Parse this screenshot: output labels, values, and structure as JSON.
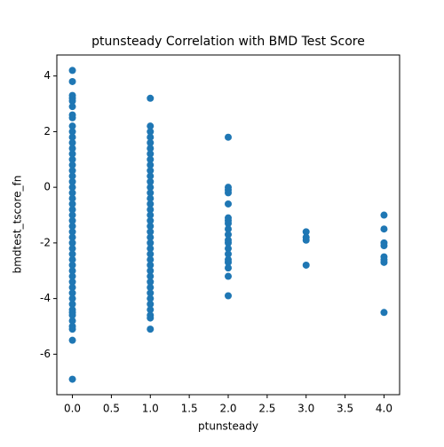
{
  "chart_data": {
    "type": "scatter",
    "title": "ptunsteady Correlation with BMD Test Score",
    "x_label": "ptunsteady",
    "y_label": "bmdtest_tscore_fn",
    "series": [
      {
        "color": "#1f77b4",
        "x": [
          0,
          0,
          0,
          0,
          0,
          0,
          0,
          0,
          0,
          0,
          0,
          0,
          0,
          0,
          0,
          0,
          0,
          0,
          0,
          0,
          0,
          0,
          0,
          0,
          0,
          0,
          0,
          0,
          0,
          0,
          0,
          0,
          0,
          0,
          0,
          0,
          0,
          0,
          0,
          0,
          0,
          0,
          0,
          0,
          0,
          0,
          0,
          0,
          0,
          1,
          1,
          1,
          1,
          1,
          1,
          1,
          1,
          1,
          1,
          1,
          1,
          1,
          1,
          1,
          1,
          1,
          1,
          1,
          1,
          1,
          1,
          1,
          1,
          1,
          1,
          1,
          1,
          1,
          1,
          1,
          1,
          1,
          1,
          1,
          1,
          1,
          1,
          2,
          2,
          2,
          2,
          2,
          2,
          2,
          2,
          2,
          2,
          2,
          2,
          2,
          2,
          2,
          2,
          2,
          2,
          2,
          3,
          3,
          3,
          3,
          4,
          4,
          4,
          4,
          4,
          4,
          4,
          4
        ],
        "values": [
          4.2,
          3.8,
          3.3,
          3.2,
          3.1,
          2.9,
          2.6,
          2.5,
          2.2,
          2.0,
          1.8,
          1.6,
          1.4,
          1.2,
          1.0,
          0.8,
          0.6,
          0.4,
          0.2,
          0,
          -0.2,
          -0.4,
          -0.6,
          -0.8,
          -1.0,
          -1.2,
          -1.4,
          -1.6,
          -1.8,
          -2.0,
          -2.2,
          -2.4,
          -2.6,
          -2.8,
          -3.0,
          -3.2,
          -3.4,
          -3.6,
          -3.8,
          -4.0,
          -4.2,
          -4.4,
          -4.5,
          -4.6,
          -4.8,
          -5.0,
          -5.1,
          -5.5,
          -6.9,
          3.2,
          2.2,
          2.0,
          1.8,
          1.6,
          1.4,
          1.2,
          1.0,
          0.8,
          0.6,
          0.4,
          0.2,
          0,
          -0.2,
          -0.4,
          -0.6,
          -0.8,
          -1.0,
          -1.2,
          -1.4,
          -1.6,
          -1.8,
          -2.0,
          -2.2,
          -2.4,
          -2.6,
          -2.8,
          -3.0,
          -3.2,
          -3.4,
          -3.6,
          -3.8,
          -4.0,
          -4.2,
          -4.4,
          -4.6,
          -4.7,
          -5.1,
          1.8,
          0,
          -0.1,
          -0.2,
          -0.6,
          -1.1,
          -1.2,
          -1.3,
          -1.5,
          -1.7,
          -1.9,
          -2.0,
          -2.2,
          -2.4,
          -2.6,
          -2.7,
          -2.9,
          -3.2,
          -3.9,
          -1.6,
          -1.8,
          -1.9,
          -2.8,
          -1.0,
          -1.5,
          -2.0,
          -2.1,
          -2.5,
          -2.6,
          -2.7,
          -4.5
        ]
      }
    ],
    "xlim": [
      -0.2,
      4.2
    ],
    "xticks": [
      {
        "value": 0,
        "label": "0.0"
      },
      {
        "value": 0.5,
        "label": "0.5"
      },
      {
        "value": 1,
        "label": "1.0"
      },
      {
        "value": 1.5,
        "label": "1.5"
      },
      {
        "value": 2,
        "label": "2.0"
      },
      {
        "value": 2.5,
        "label": "2.5"
      },
      {
        "value": 3,
        "label": "3.0"
      },
      {
        "value": 3.5,
        "label": "3.5"
      },
      {
        "value": 4,
        "label": "4.0"
      }
    ],
    "ylim": [
      -7.455,
      4.755
    ],
    "yticks": [
      4,
      2,
      0,
      -2,
      -4,
      -6
    ]
  }
}
